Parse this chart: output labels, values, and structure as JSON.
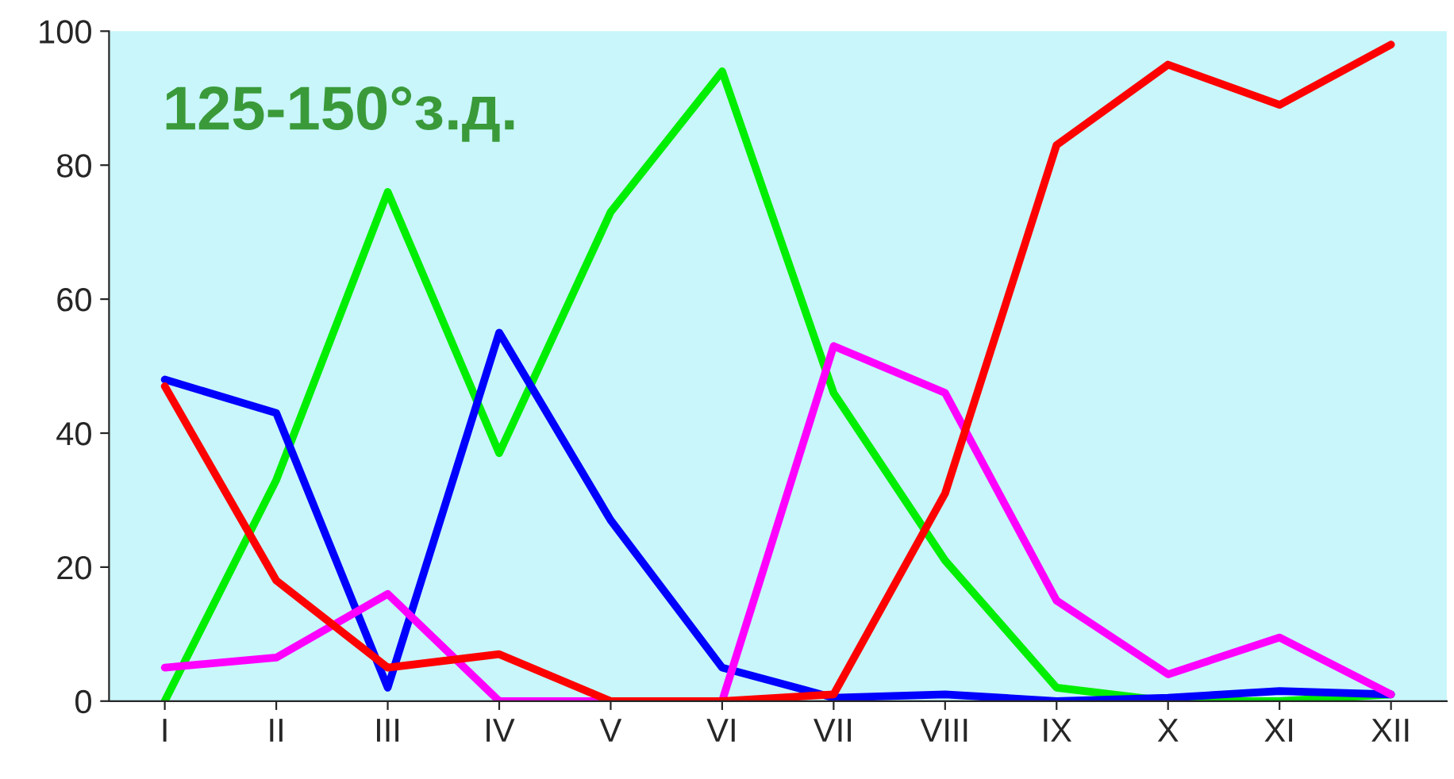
{
  "chart_data": {
    "type": "line",
    "title": "125-150°з.д.",
    "categories": [
      "I",
      "II",
      "III",
      "IV",
      "V",
      "VI",
      "VII",
      "VIII",
      "IX",
      "X",
      "XI",
      "XII"
    ],
    "series": [
      {
        "color": "#00ee00",
        "values": [
          0,
          33,
          76,
          37,
          73,
          94,
          46,
          21,
          2,
          0,
          0,
          1
        ]
      },
      {
        "color": "#0000ff",
        "values": [
          48,
          43,
          2,
          55,
          27,
          5,
          0.5,
          1,
          0,
          0.5,
          1.5,
          1
        ]
      },
      {
        "color": "#ff00ff",
        "values": [
          5,
          6.5,
          16,
          0,
          0,
          0,
          53,
          46,
          15,
          4,
          9.5,
          1
        ]
      },
      {
        "color": "#ff0000",
        "values": [
          47,
          18,
          5,
          7,
          0,
          0,
          1,
          31,
          83,
          95,
          89,
          98
        ]
      }
    ],
    "ylim": [
      0,
      100
    ],
    "yticks": [
      0,
      20,
      40,
      60,
      80,
      100
    ],
    "grid": false,
    "marker": "none",
    "line_style": "solid"
  }
}
